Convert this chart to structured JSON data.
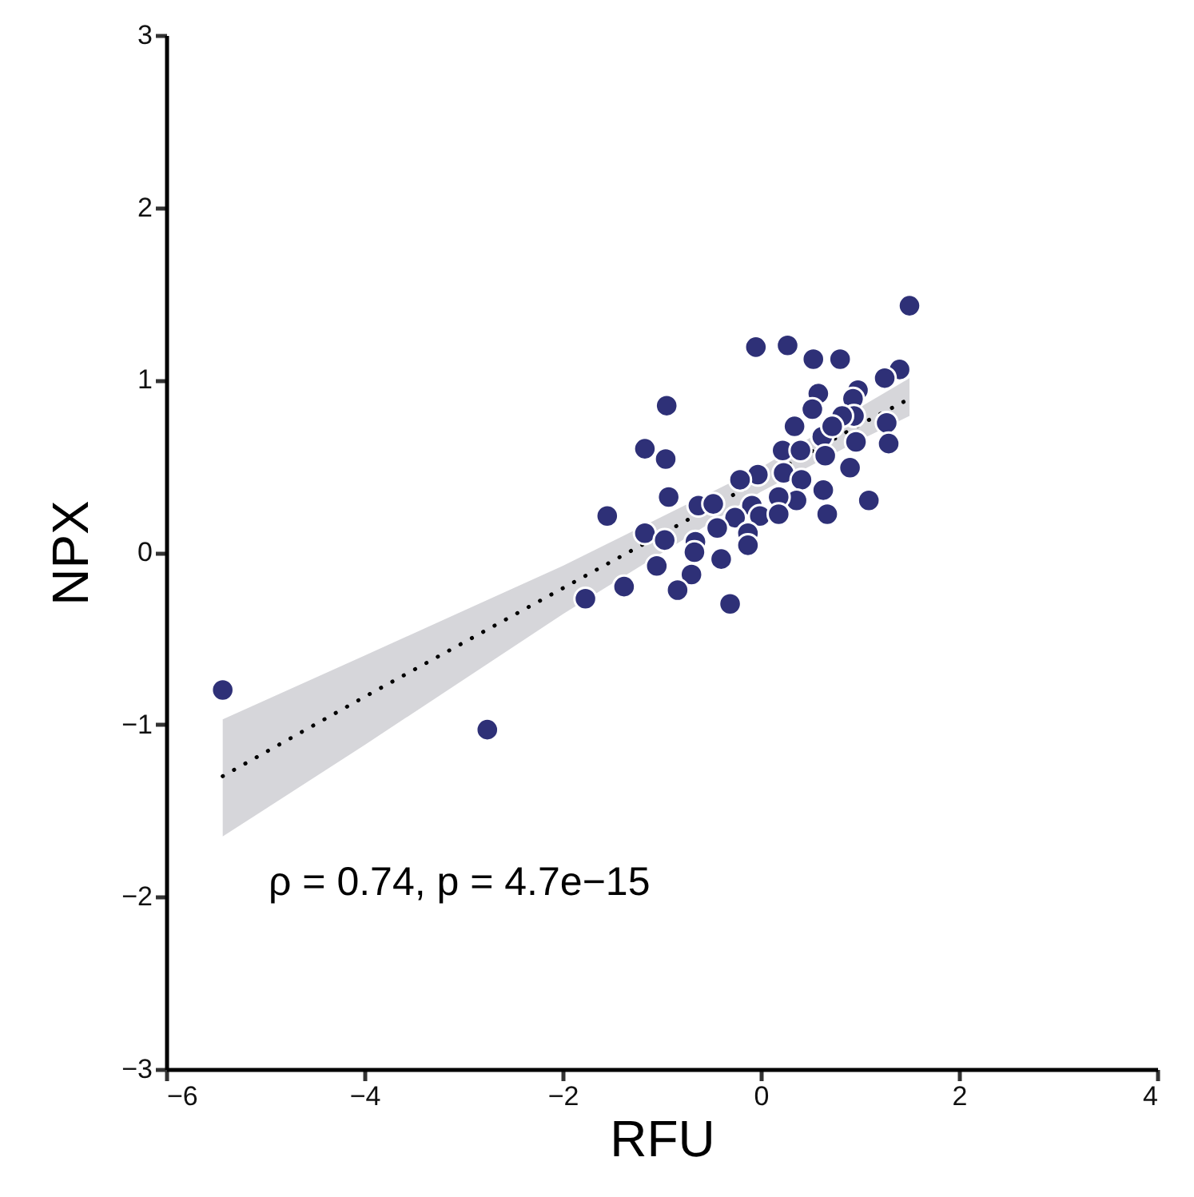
{
  "chart_data": {
    "type": "scatter",
    "xlabel": "RFU",
    "ylabel": "NPX",
    "xlim": [
      -6,
      4
    ],
    "xticks": [
      -6,
      -4,
      -2,
      0,
      2,
      4
    ],
    "ylim": [
      -3,
      3
    ],
    "yticks": [
      -3,
      -2,
      -1,
      0,
      1,
      2,
      3
    ],
    "grid": false,
    "annotations": [
      "ρ = 0.74, p = 4.7e−15"
    ],
    "series": [
      {
        "type": "line",
        "color": "#000000",
        "line_style": "dotted",
        "x": [
          -5.43,
          -4,
          -2,
          0,
          1,
          1.5
        ],
        "values": [
          -1.3,
          -0.84,
          -0.21,
          0.42,
          0.74,
          0.89
        ],
        "lower": [
          -1.65,
          -1.12,
          -0.36,
          0.35,
          0.65,
          0.79
        ],
        "upper": [
          -0.97,
          -0.6,
          -0.08,
          0.49,
          0.84,
          1.01
        ]
      },
      {
        "type": "scatter",
        "color": "#2e3077",
        "marker": "circle",
        "x": [
          -5.43,
          -2.76,
          1.5,
          -0.05,
          0.27,
          0.53,
          0.8,
          1.4,
          1.25,
          -0.95,
          0.98,
          0.58,
          0.52,
          0.93,
          0.94,
          1.27,
          0.82,
          0.34,
          0.62,
          0.72,
          0.96,
          1.29,
          -1.17,
          0.22,
          0.4,
          0.65,
          -0.96,
          0.9,
          0.23,
          0.41,
          -0.03,
          -0.21,
          0.63,
          1.09,
          -0.93,
          0.36,
          0.18,
          0.67,
          -0.63,
          -0.48,
          -0.09,
          -1.55,
          -0.26,
          -0.01,
          0.18,
          -0.44,
          -1.17,
          -0.97,
          -0.13,
          -0.66,
          -0.13,
          -0.4,
          -0.67,
          -1.05,
          -0.7,
          -1.38,
          -0.84,
          -0.31,
          -1.77
        ],
        "values": [
          -0.8,
          -1.03,
          1.43,
          1.19,
          1.2,
          1.12,
          1.12,
          1.06,
          1.01,
          0.85,
          0.94,
          0.92,
          0.83,
          0.89,
          0.79,
          0.75,
          0.79,
          0.73,
          0.67,
          0.73,
          0.64,
          0.63,
          0.6,
          0.59,
          0.59,
          0.56,
          0.54,
          0.49,
          0.46,
          0.42,
          0.45,
          0.42,
          0.36,
          0.3,
          0.32,
          0.3,
          0.32,
          0.22,
          0.27,
          0.28,
          0.27,
          0.21,
          0.2,
          0.21,
          0.22,
          0.14,
          0.11,
          0.07,
          0.11,
          0.06,
          0.04,
          -0.04,
          0.0,
          -0.08,
          -0.13,
          -0.2,
          -0.22,
          -0.3,
          -0.27
        ]
      }
    ]
  }
}
